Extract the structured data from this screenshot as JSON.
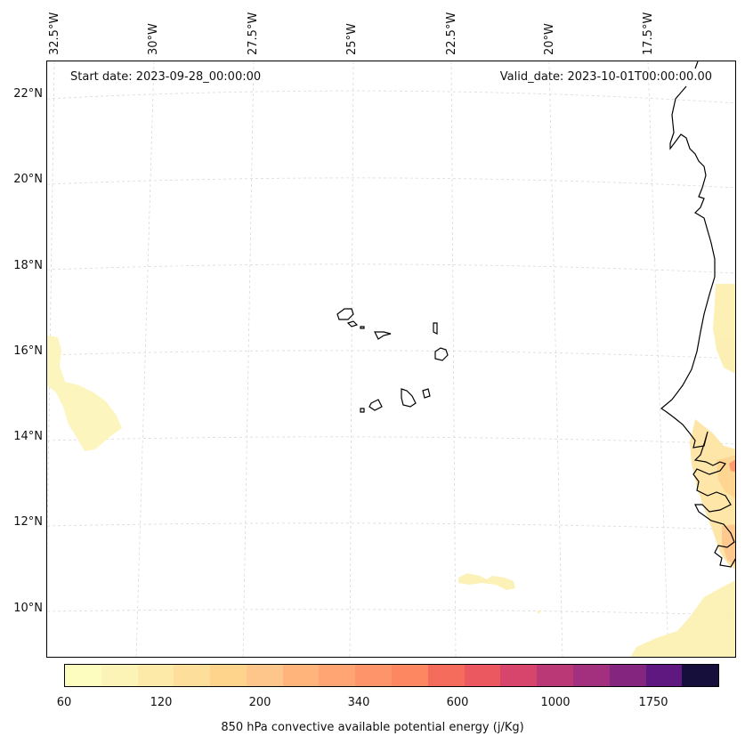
{
  "map": {
    "start_date": "Start date: 2023-09-28_00:00:00",
    "valid_date": "Valid_date: 2023-10-01T00:00:00.00",
    "lat_labels": [
      "22°N",
      "20°N",
      "18°N",
      "16°N",
      "14°N",
      "12°N",
      "10°N"
    ],
    "lon_labels": [
      "32.5°W",
      "30°W",
      "27.5°W",
      "25°W",
      "22.5°W",
      "20°W",
      "17.5°W"
    ],
    "coast_color": "#000000",
    "grid_color": "#d9d9d9"
  },
  "colorbar": {
    "label": "850 hPa convective available potential energy (j/Kg)",
    "ticks": [
      "60",
      "120",
      "200",
      "340",
      "600",
      "1000",
      "1750"
    ],
    "colors": [
      "#fcfdbf",
      "#fcf4b6",
      "#fde9a8",
      "#fede9b",
      "#fed38c",
      "#fec68a",
      "#feb47b",
      "#fea573",
      "#fe946a",
      "#fc8761",
      "#f56b5c",
      "#ec5860",
      "#d8456c",
      "#ba3876",
      "#a3307e",
      "#84267f",
      "#5f187f",
      "#160f3b"
    ]
  }
}
